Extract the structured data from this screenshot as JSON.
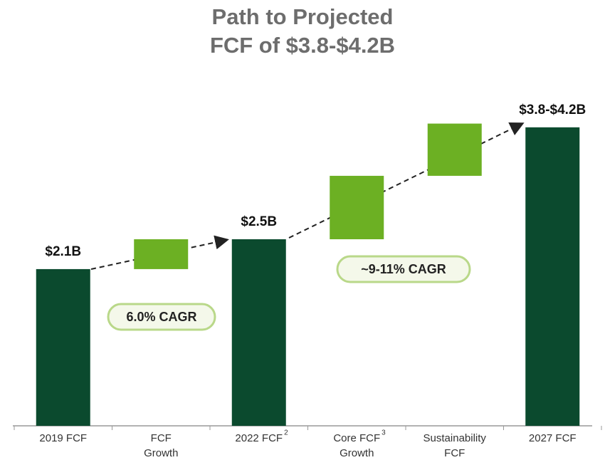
{
  "chart_data": {
    "type": "waterfall",
    "title": [
      "Path to Projected",
      "FCF of $3.8-$4.2B"
    ],
    "categories": [
      [
        "2019 FCF"
      ],
      [
        "FCF",
        "Growth"
      ],
      [
        "2022 FCF"
      ],
      [
        "Core FCF",
        "Growth"
      ],
      [
        "Sustainability",
        "FCF"
      ],
      [
        "2027 FCF"
      ]
    ],
    "category_notes": [
      null,
      null,
      "2",
      "3",
      null,
      null
    ],
    "measure": [
      "total",
      "relative",
      "total",
      "relative",
      "relative",
      "total"
    ],
    "values": [
      2.1,
      0.4,
      2.5,
      0.85,
      0.7,
      4.0
    ],
    "value_labels": [
      "$2.1B",
      null,
      "$2.5B",
      null,
      null,
      "$3.8-$4.2B"
    ],
    "colors": {
      "total": "#0b4a2e",
      "relative": "#6cb023"
    },
    "annotations": [
      "6.0% CAGR",
      "~9-11% CAGR"
    ]
  }
}
